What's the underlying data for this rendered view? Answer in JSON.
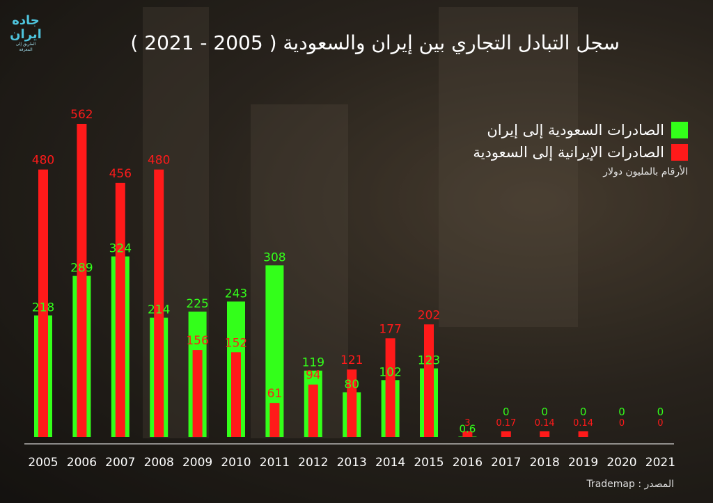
{
  "logo": {
    "name": "جاده ایران",
    "tagline": "الطريق إلى المعرفة"
  },
  "chart_data": {
    "type": "bar",
    "title": "سجل التبادل التجاري بين إيران والسعودية  ( 2005 - 2021 )",
    "note": "الأرقام بالمليون دولار",
    "source": "المصدر : Trademap",
    "categories": [
      "2005",
      "2006",
      "2007",
      "2008",
      "2009",
      "2010",
      "2011",
      "2012",
      "2013",
      "2014",
      "2015",
      "2016",
      "2017",
      "2018",
      "2019",
      "2020",
      "2021"
    ],
    "series": [
      {
        "name": "الصادرات السعودية إلى إيران",
        "color": "#33ff1a",
        "values": [
          218,
          289,
          324,
          214,
          225,
          243,
          308,
          119,
          80,
          102,
          123,
          0.6,
          0,
          0,
          0,
          0,
          0
        ],
        "labels": [
          "218",
          "289",
          "324",
          "214",
          "225",
          "243",
          "308",
          "119",
          "80",
          "102",
          "123",
          "0.6",
          "0",
          "0",
          "0",
          "0",
          "0"
        ]
      },
      {
        "name": "الصادرات الإيرانية إلى السعودية",
        "color": "#ff1a1a",
        "values": [
          480,
          562,
          456,
          480,
          156,
          152,
          61,
          94,
          121,
          177,
          202,
          3,
          0.17,
          0.14,
          0.14,
          0,
          0
        ],
        "labels": [
          "480",
          "562",
          "456",
          "480",
          "156",
          "152",
          "61",
          "94",
          "121",
          "177",
          "202",
          "3",
          "0.17",
          "0.14",
          "0.14",
          "0",
          "0"
        ]
      }
    ],
    "ylim": [
      0,
      562
    ]
  }
}
